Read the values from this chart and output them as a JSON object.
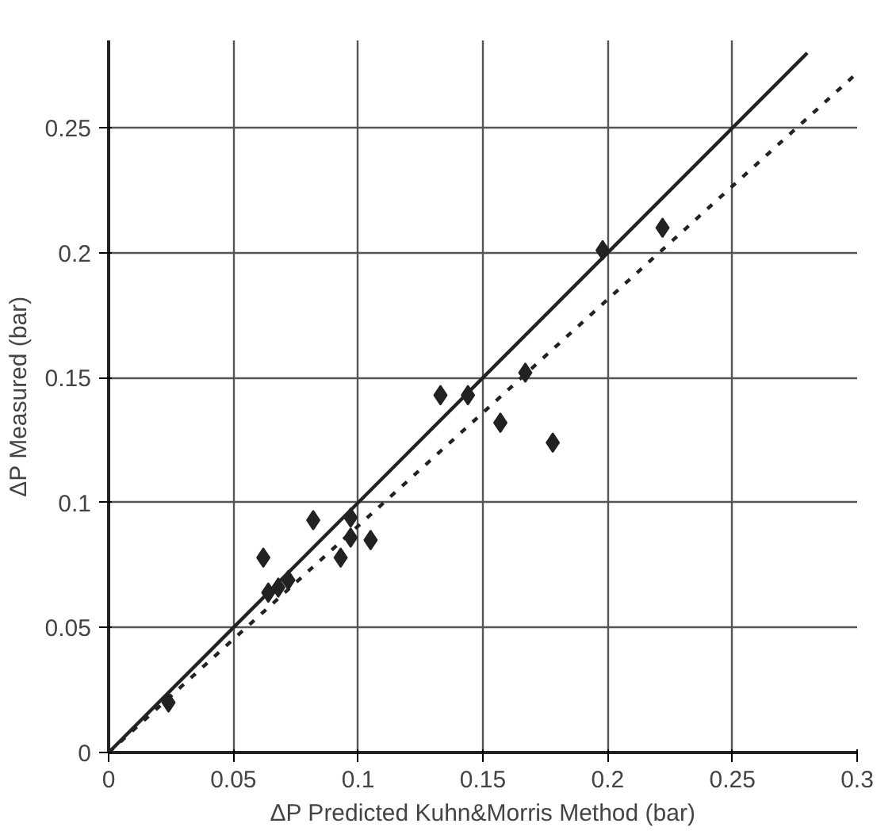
{
  "chart_data": {
    "type": "scatter",
    "xlabel": "ΔP Predicted Kuhn&Morris Method (bar)",
    "ylabel": "ΔP Measured (bar)",
    "xlim": [
      0,
      0.3
    ],
    "ylim": [
      0,
      0.285
    ],
    "xticks": [
      0,
      0.05,
      0.1,
      0.15,
      0.2,
      0.25,
      0.3
    ],
    "yticks": [
      0,
      0.05,
      0.1,
      0.15,
      0.2,
      0.25
    ],
    "grid": true,
    "series": [
      {
        "color": "#222222",
        "marker": "diamond",
        "x": [
          0.024,
          0.062,
          0.064,
          0.068,
          0.072,
          0.082,
          0.093,
          0.097,
          0.097,
          0.105,
          0.133,
          0.144,
          0.157,
          0.167,
          0.178,
          0.198,
          0.222
        ],
        "values": [
          0.02,
          0.078,
          0.064,
          0.066,
          0.069,
          0.093,
          0.078,
          0.094,
          0.086,
          0.085,
          0.143,
          0.143,
          0.132,
          0.152,
          0.124,
          0.201,
          0.21
        ]
      },
      {
        "type": "line",
        "color": "#222222",
        "line_style": "solid",
        "marker": "none",
        "x": [
          0,
          0.28
        ],
        "values": [
          0,
          0.28
        ]
      },
      {
        "type": "line",
        "color": "#222222",
        "line_style": "dotted",
        "marker": "none",
        "x": [
          0,
          0.3
        ],
        "values": [
          0,
          0.272
        ]
      }
    ]
  }
}
